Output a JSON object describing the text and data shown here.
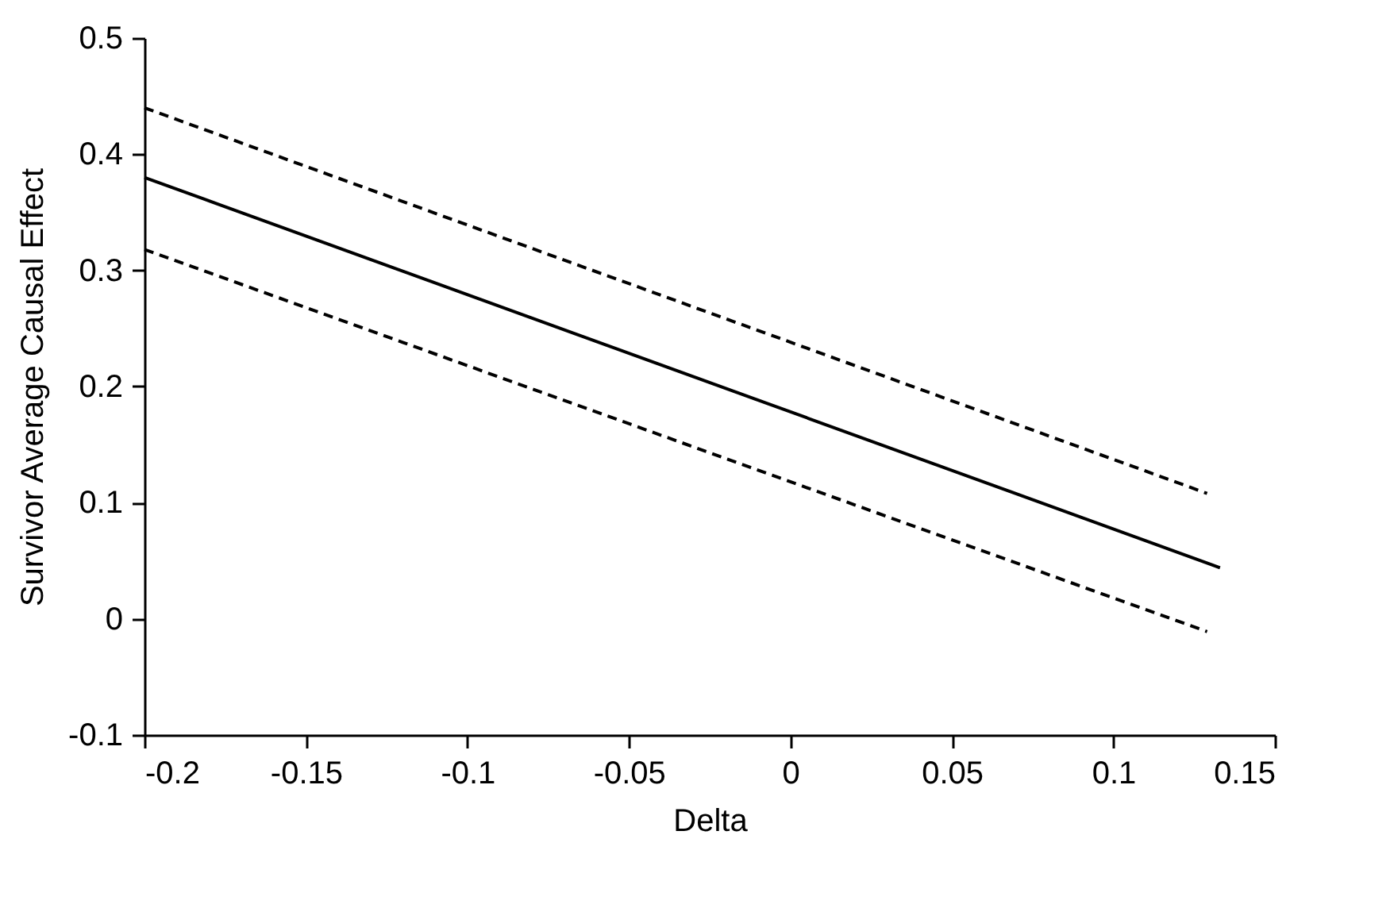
{
  "chart_data": {
    "type": "line",
    "xlabel": "Delta",
    "ylabel": "Survivor Average Causal Effect",
    "xlim": [
      -0.2,
      0.15
    ],
    "ylim": [
      -0.1,
      0.5
    ],
    "xticks": [
      -0.2,
      -0.15,
      -0.1,
      -0.05,
      0,
      0.05,
      0.1,
      0.15
    ],
    "yticks": [
      -0.1,
      0,
      0.1,
      0.2,
      0.3,
      0.4,
      0.5
    ],
    "grid": false,
    "marker": "none",
    "series": [
      {
        "color": "#000000",
        "line_style": "solid",
        "x": [
          -0.2,
          0.133
        ],
        "values": [
          0.38,
          0.044
        ]
      },
      {
        "color": "#000000",
        "line_style": "dashed",
        "x": [
          -0.2,
          0.129
        ],
        "values": [
          0.44,
          0.108
        ]
      },
      {
        "color": "#000000",
        "line_style": "dashed",
        "x": [
          -0.2,
          0.129
        ],
        "values": [
          0.318,
          -0.011
        ]
      }
    ]
  }
}
